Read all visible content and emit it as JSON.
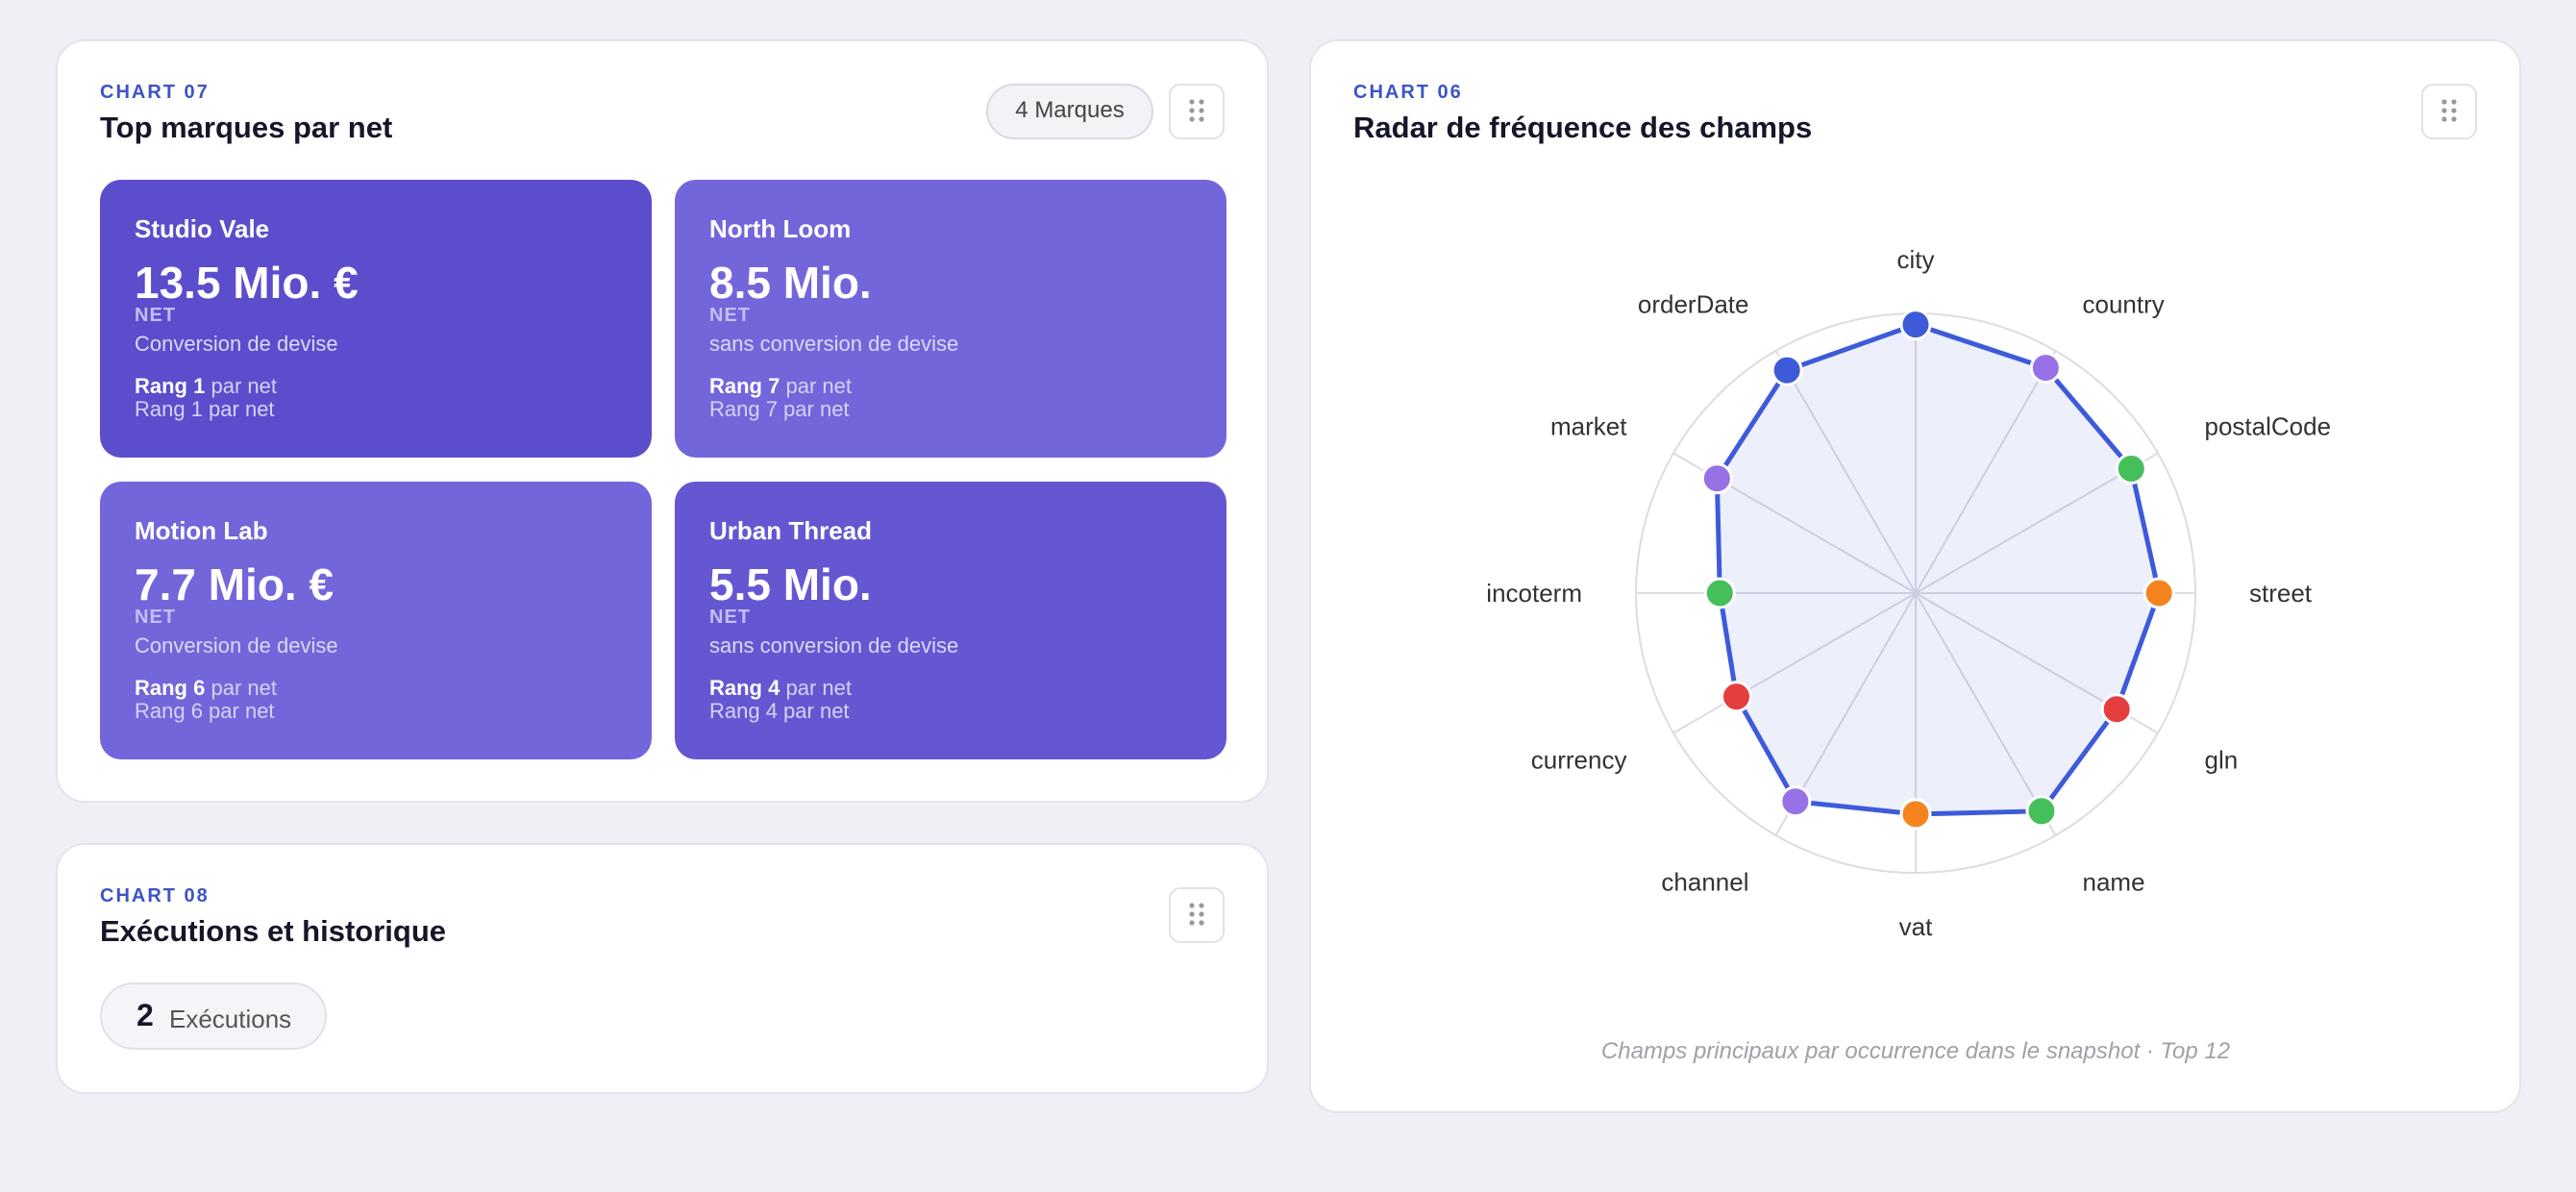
{
  "chart07": {
    "eyebrow": "CHART 07",
    "title": "Top marques par net",
    "badge": "4 Marques",
    "brands": [
      {
        "name": "Studio Vale",
        "value": "13.5 Mio. €",
        "unit": "NET",
        "note": "Conversion de devise",
        "rank": "Rang 1",
        "rank_suffix": "par net",
        "rank_line": "Rang 1 par net",
        "color": "#5b4dcc"
      },
      {
        "name": "North Loom",
        "value": "8.5 Mio.",
        "unit": "NET",
        "note": "sans conversion de devise",
        "rank": "Rang 7",
        "rank_suffix": "par net",
        "rank_line": "Rang 7 par net",
        "color": "#7366da"
      },
      {
        "name": "Motion Lab",
        "value": "7.7 Mio. €",
        "unit": "NET",
        "note": "Conversion de devise",
        "rank": "Rang 6",
        "rank_suffix": "par net",
        "rank_line": "Rang 6 par net",
        "color": "#7366da"
      },
      {
        "name": "Urban Thread",
        "value": "5.5 Mio.",
        "unit": "NET",
        "note": "sans conversion de devise",
        "rank": "Rang 4",
        "rank_suffix": "par net",
        "rank_line": "Rang 4 par net",
        "color": "#6557d2"
      }
    ]
  },
  "chart08": {
    "eyebrow": "CHART 08",
    "title": "Exécutions et historique",
    "count": 2,
    "count_label": "Exécutions"
  },
  "chart_data": {
    "type": "radar",
    "eyebrow": "CHART 06",
    "title": "Radar de fréquence des champs",
    "categories": [
      "city",
      "country",
      "postalCode",
      "street",
      "gln",
      "name",
      "vat",
      "channel",
      "currency",
      "incoterm",
      "market",
      "orderDate"
    ],
    "values": [
      96,
      93,
      89,
      87,
      83,
      90,
      79,
      86,
      74,
      70,
      82,
      92
    ],
    "point_colors": [
      "#3d5bd9",
      "#9672e6",
      "#44bf5a",
      "#f5841f",
      "#e53e3e",
      "#44bf5a",
      "#f5841f",
      "#9672e6",
      "#e53e3e",
      "#44bf5a",
      "#9672e6",
      "#3d5bd9"
    ],
    "color": "#3d5bd9",
    "rlim": [
      0,
      100
    ],
    "rticks": [
      20,
      40,
      60,
      80,
      100
    ],
    "grid": true,
    "caption": "Champs principaux par occurrence dans le snapshot · Top 12"
  }
}
